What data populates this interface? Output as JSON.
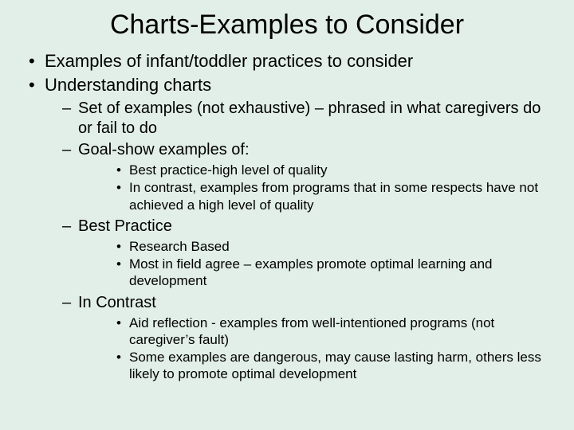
{
  "slide": {
    "background_color": "#e2efe8",
    "text_color": "#000000",
    "font_family": "Arial",
    "title": "Charts-Examples to Consider",
    "title_fontsize": 34,
    "bullets_level1_fontsize": 22,
    "bullets_level2_fontsize": 20,
    "bullets_level3_fontsize": 17,
    "bullets": [
      {
        "text": "Examples of infant/toddler practices to consider"
      },
      {
        "text": "Understanding charts",
        "children": [
          {
            "text": "Set of examples (not exhaustive) – phrased in what caregivers do or fail to do"
          },
          {
            "text": "Goal-show examples of:",
            "children": [
              {
                "text": "Best practice-high level of quality"
              },
              {
                "text": "In contrast, examples from programs that in some respects have not achieved a high level of quality"
              }
            ]
          },
          {
            "text": "Best Practice",
            "children": [
              {
                "text": "Research Based"
              },
              {
                "text": "Most in field agree – examples promote optimal learning and development"
              }
            ]
          },
          {
            "text": "In Contrast",
            "children": [
              {
                "text": "Aid reflection - examples from well-intentioned programs (not caregiver’s fault)"
              },
              {
                "text": "Some examples are dangerous, may cause lasting harm, others less likely to promote optimal development"
              }
            ]
          }
        ]
      }
    ]
  }
}
